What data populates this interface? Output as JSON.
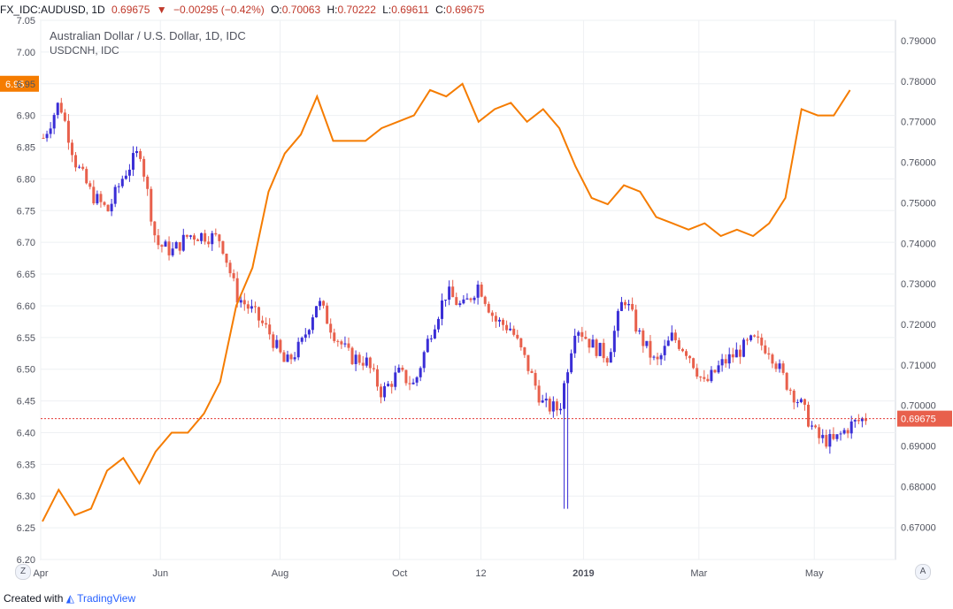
{
  "header": {
    "symbol": "FX_IDC:AUDUSD, 1D",
    "last": "0.69675",
    "change": "−0.00295 (−0.42%)",
    "o_label": "O:",
    "o": "0.70063",
    "h_label": "H:",
    "h": "0.70222",
    "l_label": "L:",
    "l": "0.69611",
    "c_label": "C:",
    "c": "0.69675"
  },
  "legend": {
    "main": "Australian Dollar / U.S. Dollar, 1D, IDC",
    "overlay": "USDCNH, IDC"
  },
  "footer": {
    "created_with": "Created with",
    "brand": "TradingView"
  },
  "buttons": {
    "zoom": "Z",
    "auto": "A"
  },
  "colors": {
    "up": "#3a2ed6",
    "down": "#e8604c",
    "overlay_line": "#f57c00",
    "price_line": "#e53935",
    "grid": "#eef0f3",
    "axis_text": "#50535e"
  },
  "chart_data": {
    "type": "line",
    "title": "Australian Dollar / U.S. Dollar, 1D, IDC",
    "x_ticks": [
      "Apr",
      "Jun",
      "Aug",
      "Oct",
      "12",
      "2019",
      "Mar",
      "May"
    ],
    "left_axis": {
      "series": "USDCNH, IDC",
      "ylim": [
        6.2,
        7.05
      ],
      "ticks": [
        7.05,
        7.0,
        6.95,
        6.9,
        6.85,
        6.8,
        6.75,
        6.7,
        6.65,
        6.6,
        6.55,
        6.5,
        6.45,
        6.4,
        6.35,
        6.3,
        6.25,
        6.2
      ],
      "last_value_label": "6.95"
    },
    "right_axis": {
      "series": "FX_IDC:AUDUSD",
      "ylim": [
        0.662,
        0.795
      ],
      "ticks": [
        0.79,
        0.78,
        0.77,
        0.76,
        0.75,
        0.74,
        0.73,
        0.72,
        0.71,
        0.7,
        0.69,
        0.68,
        0.67
      ],
      "last_value_label": "0.69675"
    },
    "series": [
      {
        "name": "USDCNH, IDC",
        "axis": "left",
        "style": "line",
        "x": [
          0,
          0.02,
          0.04,
          0.06,
          0.08,
          0.1,
          0.12,
          0.14,
          0.16,
          0.18,
          0.2,
          0.22,
          0.24,
          0.26,
          0.28,
          0.3,
          0.32,
          0.34,
          0.36,
          0.38,
          0.4,
          0.42,
          0.44,
          0.46,
          0.48,
          0.5,
          0.52,
          0.54,
          0.56,
          0.58,
          0.6,
          0.62,
          0.64,
          0.66,
          0.68,
          0.7,
          0.72,
          0.74,
          0.76,
          0.78,
          0.8,
          0.82,
          0.84,
          0.86,
          0.88,
          0.9,
          0.92,
          0.94,
          0.96,
          0.98,
          1.0
        ],
        "values": [
          6.26,
          6.31,
          6.27,
          6.28,
          6.34,
          6.36,
          6.32,
          6.37,
          6.4,
          6.4,
          6.43,
          6.48,
          6.6,
          6.66,
          6.78,
          6.84,
          6.87,
          6.93,
          6.86,
          6.86,
          6.86,
          6.88,
          6.89,
          6.9,
          6.94,
          6.93,
          6.95,
          6.89,
          6.91,
          6.92,
          6.89,
          6.91,
          6.88,
          6.82,
          6.77,
          6.76,
          6.79,
          6.78,
          6.74,
          6.73,
          6.72,
          6.73,
          6.71,
          6.72,
          6.71,
          6.73,
          6.77,
          6.91,
          6.9,
          6.9,
          6.94
        ]
      },
      {
        "name": "FX_IDC:AUDUSD",
        "axis": "right",
        "style": "candles",
        "close_path": [
          0.766,
          0.775,
          0.76,
          0.752,
          0.748,
          0.757,
          0.763,
          0.74,
          0.738,
          0.742,
          0.742,
          0.741,
          0.727,
          0.723,
          0.718,
          0.71,
          0.715,
          0.726,
          0.718,
          0.712,
          0.711,
          0.703,
          0.708,
          0.705,
          0.718,
          0.728,
          0.724,
          0.73,
          0.721,
          0.719,
          0.71,
          0.7,
          0.699,
          0.72,
          0.715,
          0.712,
          0.727,
          0.717,
          0.71,
          0.717,
          0.713,
          0.705,
          0.71,
          0.713,
          0.716,
          0.714,
          0.706,
          0.7,
          0.692,
          0.691,
          0.695,
          0.697
        ]
      }
    ]
  }
}
